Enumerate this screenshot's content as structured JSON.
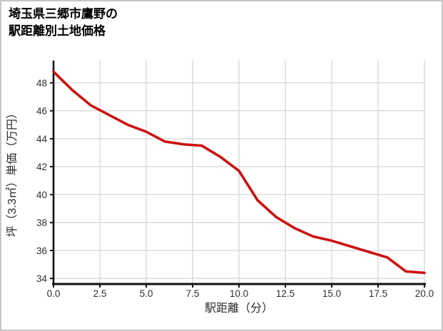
{
  "page": {
    "background_color": "#ffffff",
    "border_color": "#c6c6c6"
  },
  "title": {
    "line1": "埼玉県三郷市鷹野の",
    "line2": "駅距離別土地価格"
  },
  "chart_data": {
    "type": "line",
    "title": "埼玉県三郷市鷹野の駅距離別土地価格",
    "xlabel": "駅距離（分）",
    "ylabel": "坪（3.3㎡）単価（万円）",
    "x": [
      0,
      1,
      2,
      3,
      4,
      5,
      6,
      7,
      8,
      9,
      10,
      11,
      12,
      13,
      14,
      15,
      16,
      17,
      18,
      19,
      20
    ],
    "values": [
      48.8,
      47.5,
      46.4,
      45.7,
      45.0,
      44.5,
      43.8,
      43.6,
      43.5,
      42.7,
      41.7,
      39.6,
      38.4,
      37.6,
      37.0,
      36.7,
      36.3,
      35.9,
      35.5,
      34.5,
      34.4
    ],
    "series_name": "駅距離別土地価格",
    "x_ticks": [
      0,
      2.5,
      5,
      7.5,
      10,
      12.5,
      15,
      17.5,
      20
    ],
    "x_tick_labels": [
      "0.0",
      "2.5",
      "5.0",
      "7.5",
      "10.0",
      "12.5",
      "15.0",
      "17.5",
      "20.0"
    ],
    "y_ticks": [
      34,
      36,
      38,
      40,
      42,
      44,
      46,
      48
    ],
    "y_tick_labels": [
      "34",
      "36",
      "38",
      "40",
      "42",
      "44",
      "46",
      "48"
    ],
    "xlim": [
      0,
      20
    ],
    "ylim": [
      33.6,
      49.6
    ],
    "grid": true,
    "legend": "none",
    "line_color": "#cc1111",
    "grid_color": "#d6d6d6",
    "axis_color": "#111111"
  }
}
